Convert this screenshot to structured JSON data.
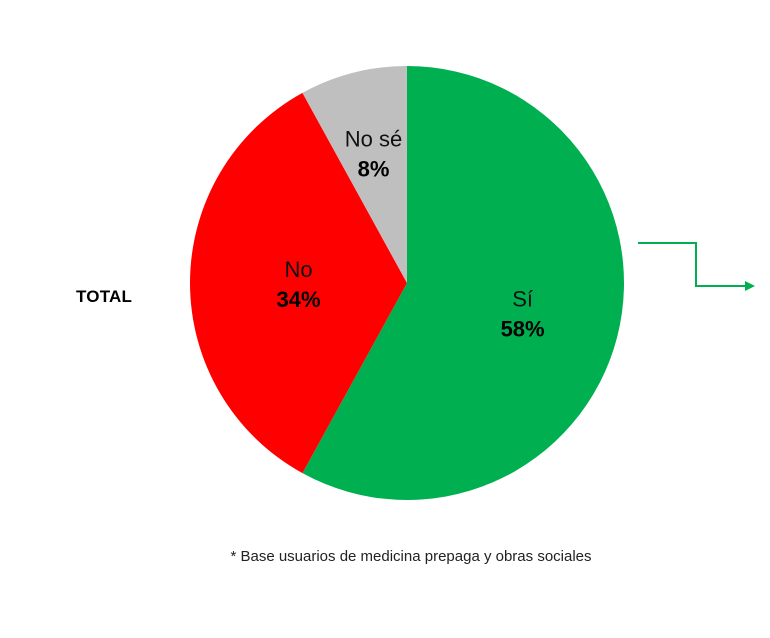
{
  "side_label": "TOTAL",
  "footnote": "* Base usuarios de medicina prepaga y obras sociales",
  "arrow_color": "#00b050",
  "chart_data": {
    "type": "pie",
    "start_angle_deg": 0,
    "direction": "clockwise",
    "slices": [
      {
        "name": "Sí",
        "label": "58%",
        "value": 58,
        "color": "#00b050"
      },
      {
        "name": "No",
        "label": "34%",
        "value": 34,
        "color": "#ff0000"
      },
      {
        "name": "No sé",
        "label": "8%",
        "value": 8,
        "color": "#bfbfbf"
      }
    ]
  }
}
